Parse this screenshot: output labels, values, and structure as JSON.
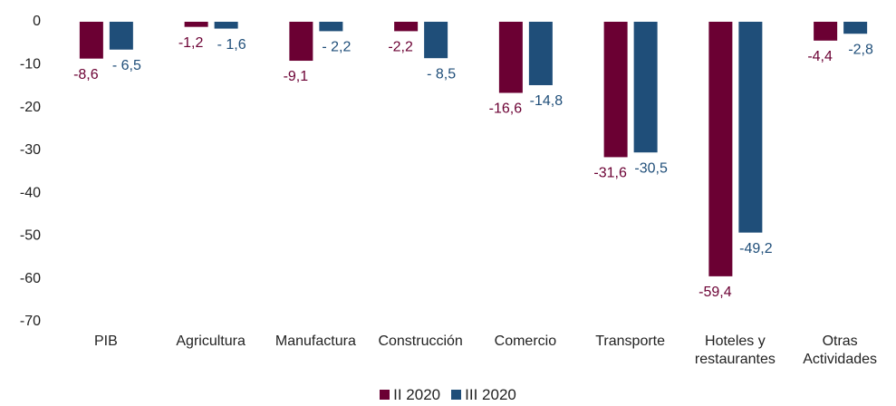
{
  "chart_data": {
    "type": "bar",
    "categories": [
      "PIB",
      "Agricultura",
      "Manufactura",
      "Construcción",
      "Comercio",
      "Transporte",
      "Hoteles y restaurantes",
      "Otras Actividades"
    ],
    "series": [
      {
        "name": "II 2020",
        "color": "#6b0033",
        "values": [
          -8.6,
          -1.2,
          -9.1,
          -2.2,
          -16.6,
          -31.6,
          -59.4,
          -4.4
        ],
        "value_labels": [
          "-8,6",
          "-1,2",
          "-9,1",
          "-2,2",
          "-16,6",
          "-31,6",
          "-59,4",
          "-4,4"
        ]
      },
      {
        "name": "III 2020",
        "color": "#1f4e79",
        "values": [
          -6.5,
          -1.6,
          -2.2,
          -8.5,
          -14.8,
          -30.5,
          -49.2,
          -2.8
        ],
        "value_labels": [
          "- 6,5",
          "- 1,6",
          "- 2,2",
          "- 8,5",
          "-14,8",
          "-30,5",
          "-49,2",
          "-2,8"
        ]
      }
    ],
    "ylim": [
      0,
      -70
    ],
    "yticks": [
      0,
      -10,
      -20,
      -30,
      -40,
      -50,
      -60,
      -70
    ],
    "grid": false,
    "legend": "bottom"
  }
}
